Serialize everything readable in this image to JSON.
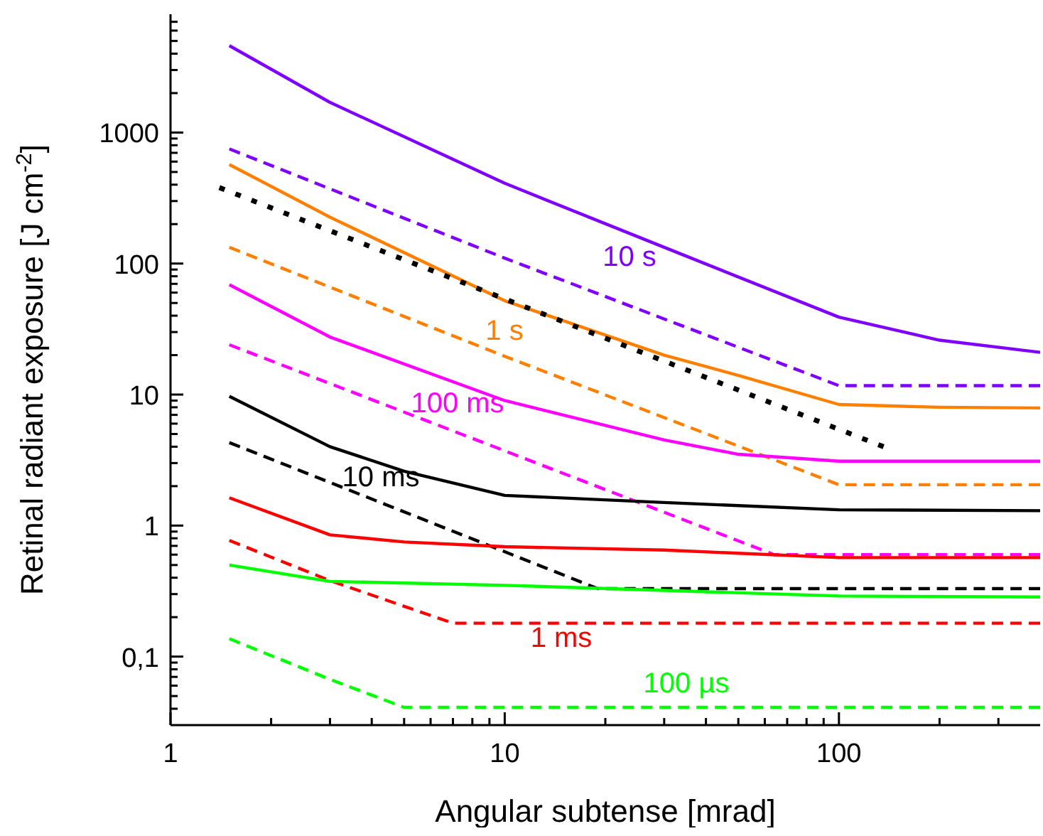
{
  "chart_data": {
    "type": "line",
    "xlabel": "Angular subtense [mrad]",
    "ylabel": "Retinal radiant exposure [J cm$^{-2}$]",
    "log": "xy",
    "xlim": [
      1,
      400
    ],
    "ylim": [
      0.03,
      8000
    ],
    "xticks": [
      1,
      {
        "value": 2,
        "label": null
      },
      {
        "value": 3,
        "label": null
      },
      {
        "value": 4,
        "label": null
      },
      {
        "value": 5,
        "label": null
      },
      {
        "value": 6,
        "label": null
      },
      {
        "value": 7,
        "label": null
      },
      {
        "value": 8,
        "label": null
      },
      {
        "value": 9,
        "label": null
      },
      10,
      {
        "value": 20,
        "label": null
      },
      {
        "value": 30,
        "label": null
      },
      {
        "value": 40,
        "label": null
      },
      {
        "value": 50,
        "label": null
      },
      {
        "value": 60,
        "label": null
      },
      {
        "value": 70,
        "label": null
      },
      {
        "value": 80,
        "label": null
      },
      {
        "value": 90,
        "label": null
      },
      100,
      {
        "value": 200,
        "label": null
      },
      {
        "value": 300,
        "label": null
      }
    ],
    "yticks": [
      {
        "value": 0.04,
        "label": null
      },
      {
        "value": 0.05,
        "label": null
      },
      {
        "value": 0.06,
        "label": null
      },
      {
        "value": 0.07,
        "label": null
      },
      {
        "value": 0.08,
        "label": null
      },
      {
        "value": 0.09,
        "label": null
      },
      {
        "value": 0.1,
        "label": "0,1"
      },
      {
        "value": 0.2,
        "label": null
      },
      {
        "value": 0.3,
        "label": null
      },
      {
        "value": 0.4,
        "label": null
      },
      {
        "value": 0.5,
        "label": null
      },
      {
        "value": 0.6,
        "label": null
      },
      {
        "value": 0.7,
        "label": null
      },
      {
        "value": 0.8,
        "label": null
      },
      {
        "value": 0.9,
        "label": null
      },
      1,
      {
        "value": 2,
        "label": null
      },
      {
        "value": 3,
        "label": null
      },
      {
        "value": 4,
        "label": null
      },
      {
        "value": 5,
        "label": null
      },
      {
        "value": 6,
        "label": null
      },
      {
        "value": 7,
        "label": null
      },
      {
        "value": 8,
        "label": null
      },
      {
        "value": 9,
        "label": null
      },
      10,
      {
        "value": 20,
        "label": null
      },
      {
        "value": 30,
        "label": null
      },
      {
        "value": 40,
        "label": null
      },
      {
        "value": 50,
        "label": null
      },
      {
        "value": 60,
        "label": null
      },
      {
        "value": 70,
        "label": null
      },
      {
        "value": 80,
        "label": null
      },
      {
        "value": 90,
        "label": null
      },
      100,
      {
        "value": 200,
        "label": null
      },
      {
        "value": 300,
        "label": null
      },
      {
        "value": 400,
        "label": null
      },
      {
        "value": 500,
        "label": null
      },
      {
        "value": 600,
        "label": null
      },
      {
        "value": 700,
        "label": null
      },
      {
        "value": 800,
        "label": null
      },
      {
        "value": 900,
        "label": null
      },
      1000,
      {
        "value": 2000,
        "label": null
      },
      {
        "value": 3000,
        "label": null
      },
      {
        "value": 4000,
        "label": null
      },
      {
        "value": 5000,
        "label": null
      },
      {
        "value": 6000,
        "label": null
      },
      {
        "value": 7000,
        "label": null
      }
    ],
    "series": [
      {
        "color": "#8000ff",
        "line_style": "solid",
        "x": [
          1.5,
          3,
          10,
          30,
          100,
          200,
          400
        ],
        "values": [
          4600,
          1700,
          410,
          133,
          39,
          26,
          21
        ]
      },
      {
        "color": "#8000ff",
        "line_style": "dashed",
        "x": [
          1.5,
          10,
          100,
          400
        ],
        "values": [
          750,
          110,
          11.7,
          11.7
        ]
      },
      {
        "color": "#ff8000",
        "line_style": "solid",
        "x": [
          1.5,
          3,
          10,
          30,
          50,
          100,
          200,
          400
        ],
        "values": [
          570,
          226,
          52,
          20,
          14,
          8.4,
          8,
          7.9
        ]
      },
      {
        "color": "#ff8000",
        "line_style": "dashed",
        "x": [
          1.5,
          10,
          100,
          400
        ],
        "values": [
          133,
          19.6,
          2.05,
          2.05
        ]
      },
      {
        "color": "#000000",
        "line_style": "dotted",
        "x": [
          1.4,
          136
        ],
        "values": [
          380,
          4.0
        ]
      },
      {
        "color": "#ff00ff",
        "line_style": "solid",
        "x": [
          1.5,
          3,
          10,
          30,
          50,
          100,
          400
        ],
        "values": [
          69,
          27.5,
          9,
          4.5,
          3.5,
          3.1,
          3.1
        ]
      },
      {
        "color": "#ff00ff",
        "line_style": "dashed",
        "x": [
          1.5,
          64,
          400
        ],
        "values": [
          24,
          0.6,
          0.6
        ]
      },
      {
        "color": "#000000",
        "line_style": "solid",
        "x": [
          1.5,
          3,
          5,
          10,
          30,
          100,
          400
        ],
        "values": [
          9.7,
          4.0,
          2.6,
          1.7,
          1.5,
          1.32,
          1.3
        ]
      },
      {
        "color": "#000000",
        "line_style": "dashed",
        "x": [
          1.5,
          19,
          400
        ],
        "values": [
          4.3,
          0.33,
          0.33
        ]
      },
      {
        "color": "#ff0000",
        "line_style": "solid",
        "x": [
          1.5,
          3,
          5,
          10,
          30,
          100,
          400
        ],
        "values": [
          1.63,
          0.85,
          0.75,
          0.69,
          0.65,
          0.57,
          0.57
        ]
      },
      {
        "color": "#ff0000",
        "line_style": "dashed",
        "x": [
          1.5,
          3,
          7,
          400
        ],
        "values": [
          0.77,
          0.38,
          0.18,
          0.18
        ]
      },
      {
        "color": "#00ff00",
        "line_style": "solid",
        "x": [
          1.5,
          3,
          10,
          30,
          100,
          400
        ],
        "values": [
          0.5,
          0.375,
          0.35,
          0.32,
          0.29,
          0.285
        ]
      },
      {
        "color": "#00ff00",
        "line_style": "dashed",
        "x": [
          1.5,
          3,
          5,
          400
        ],
        "values": [
          0.137,
          0.067,
          0.041,
          0.041
        ]
      }
    ],
    "annotations": [
      "10 s",
      "1 s",
      "100 ms",
      "10 ms",
      "1 ms",
      "100 µs"
    ]
  }
}
